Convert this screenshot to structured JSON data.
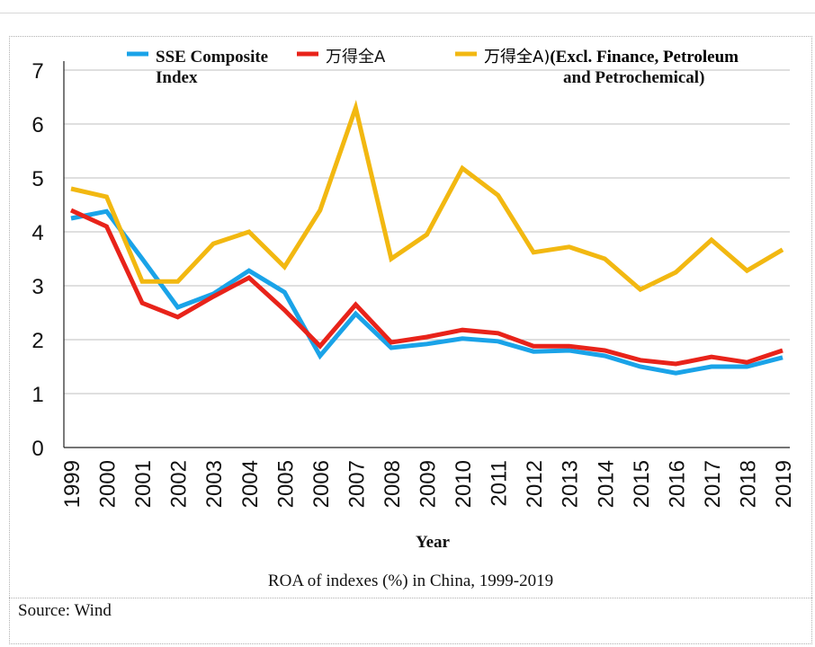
{
  "chart_data": {
    "type": "line",
    "title": "",
    "xlabel": "Year",
    "ylabel": "",
    "ylim": [
      0,
      7
    ],
    "yticks": [
      "0",
      "1",
      "2",
      "3",
      "4",
      "5",
      "6",
      "7"
    ],
    "grid": true,
    "legend_position": "top",
    "categories": [
      "1999",
      "2000",
      "2001",
      "2002",
      "2003",
      "2004",
      "2005",
      "2006",
      "2007",
      "2008",
      "2009",
      "2010",
      "2011",
      "2012",
      "2013",
      "2014",
      "2015",
      "2016",
      "2017",
      "2018",
      "2019"
    ],
    "series": [
      {
        "name_lines": [
          "SSE Composite",
          "Index"
        ],
        "color": "#1aa3e8",
        "values": [
          4.25,
          4.38,
          3.5,
          2.6,
          2.85,
          3.28,
          2.88,
          1.7,
          2.48,
          1.85,
          1.92,
          2.02,
          1.97,
          1.78,
          1.8,
          1.7,
          1.5,
          1.38,
          1.5,
          1.5,
          1.67
        ]
      },
      {
        "name_lines": [
          "万得全A"
        ],
        "color": "#e8231a",
        "values": [
          4.4,
          4.1,
          2.68,
          2.42,
          2.8,
          3.15,
          2.55,
          1.88,
          2.65,
          1.95,
          2.05,
          2.18,
          2.12,
          1.88,
          1.88,
          1.8,
          1.62,
          1.55,
          1.68,
          1.58,
          1.8
        ]
      },
      {
        "name_lines": [
          "万得全A)(Excl. Finance, Petroleum",
          "and Petrochemical)"
        ],
        "color": "#f2b811",
        "values": [
          4.8,
          4.65,
          3.08,
          3.08,
          3.78,
          4.0,
          3.35,
          4.4,
          6.3,
          3.5,
          3.95,
          5.18,
          4.68,
          3.62,
          3.72,
          3.5,
          2.93,
          3.25,
          3.85,
          3.28,
          3.67
        ]
      }
    ]
  },
  "caption": "ROA of indexes (%) in China, 1999-2019",
  "source": "Source: Wind"
}
